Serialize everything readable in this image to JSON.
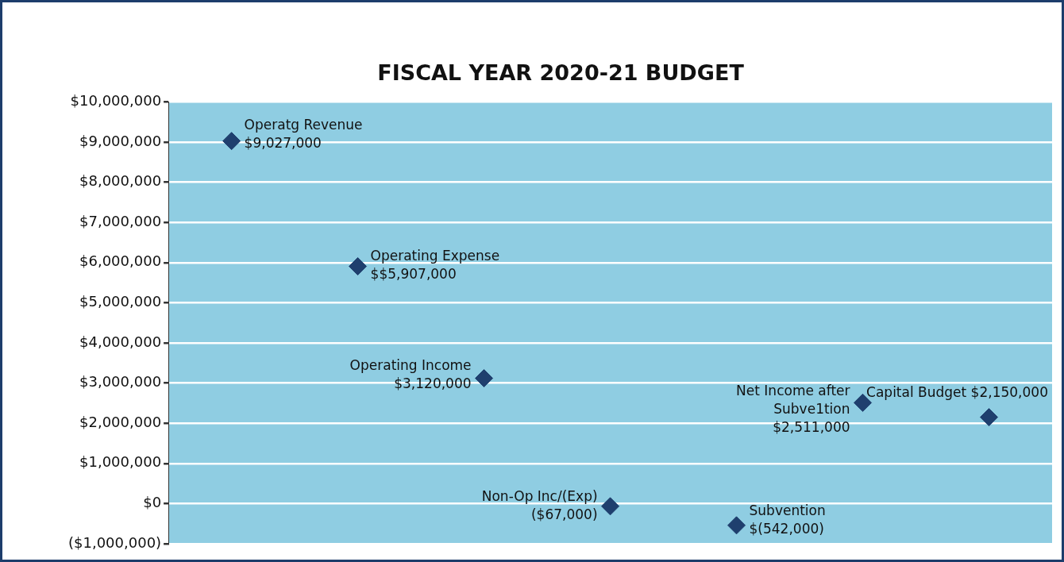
{
  "chart_data": {
    "type": "scatter",
    "title": "FISCAL YEAR 2020-21 BUDGET",
    "categories": [
      null,
      null,
      null,
      null,
      null,
      null,
      null
    ],
    "values": [
      9027000,
      5907000,
      3120000,
      -67000,
      -542000,
      2511000,
      2150000
    ],
    "value_labels": [
      "Operatg Revenue\n$9,027,000",
      "Operating Expense\n$$5,907,000",
      "Operating Income\n$3,120,000",
      "Non-Op Inc/(Exp)\n($67,000)",
      "Subvention\n$(542,000)",
      "Net Income after\nSubve1tion\n$2,511,000",
      "Capital Budget $2,150,000"
    ],
    "color": "#1f3f6e",
    "marker": "diamond",
    "grid": "y",
    "legend": false,
    "ylim": [
      -1000000,
      10000000
    ],
    "yticks": [
      {
        "value": -1000000,
        "label": "($1,000,000)"
      },
      {
        "value": 0,
        "label": "$0"
      },
      {
        "value": 1000000,
        "label": "$1,000,000"
      },
      {
        "value": 2000000,
        "label": "$2,000,000"
      },
      {
        "value": 3000000,
        "label": "$3,000,000"
      },
      {
        "value": 4000000,
        "label": "$4,000,000"
      },
      {
        "value": 5000000,
        "label": "$5,000,000"
      },
      {
        "value": 6000000,
        "label": "$6,000,000"
      },
      {
        "value": 7000000,
        "label": "$7,000,000"
      },
      {
        "value": 8000000,
        "label": "$8,000,000"
      },
      {
        "value": 9000000,
        "label": "$9,000,000"
      },
      {
        "value": 10000000,
        "label": "$10,000,000"
      }
    ]
  }
}
